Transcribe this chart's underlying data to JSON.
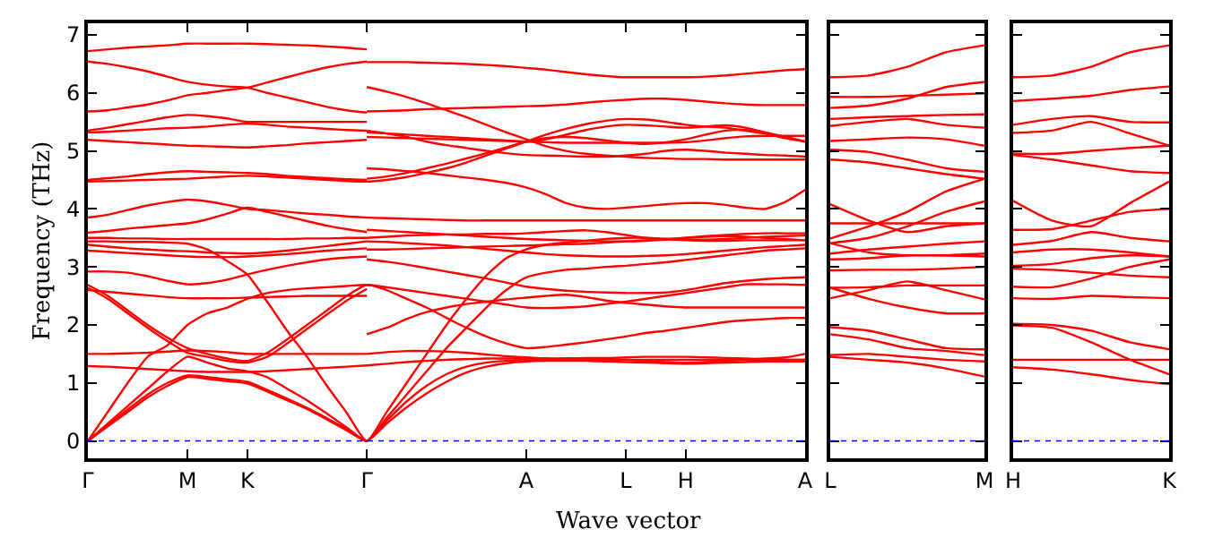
{
  "chart_data": [
    {
      "type": "line",
      "xlabel": "Wave vector",
      "ylabel": "Frequency (THz)",
      "ylim": [
        -0.3,
        7.2
      ],
      "yticks": [
        0,
        1,
        2,
        3,
        4,
        5,
        6,
        7
      ],
      "categories": [
        "Γ",
        null,
        null,
        null,
        null,
        "M",
        null,
        null,
        "K",
        null,
        null,
        null,
        null,
        null,
        "Γ",
        null,
        null,
        null,
        null,
        null,
        null,
        null,
        "A",
        null,
        null,
        null,
        null,
        "L",
        null,
        null,
        "H",
        null,
        null,
        null,
        null,
        null,
        "A"
      ],
      "grid": false,
      "marker": "none",
      "line_style": "solid",
      "ref_lines": [
        {
          "axis": "y",
          "value": 0,
          "color": "#0000ff",
          "line_style": "dotted"
        }
      ],
      "series": [
        {
          "color": "#ff0000",
          "values": [
            6.72,
            6.75,
            6.78,
            6.8,
            6.82,
            6.85,
            6.85,
            6.85,
            6.85,
            6.84,
            6.83,
            6.82,
            6.8,
            6.78,
            6.75,
            null,
            null,
            null,
            null,
            null,
            null,
            null,
            null,
            null,
            null,
            null,
            null,
            null,
            null,
            null,
            null,
            null,
            null,
            null,
            null,
            null,
            null
          ]
        },
        {
          "color": "#ff0000",
          "values": [
            6.54,
            6.5,
            6.44,
            6.37,
            6.28,
            6.19,
            6.14,
            6.11,
            6.09,
            6.0,
            5.92,
            5.84,
            5.76,
            5.7,
            5.66,
            null,
            null,
            null,
            null,
            null,
            null,
            null,
            null,
            null,
            null,
            null,
            null,
            null,
            null,
            null,
            null,
            null,
            null,
            null,
            null,
            null,
            null
          ]
        },
        {
          "color": "#ff0000",
          "values": [
            5.68,
            5.7,
            5.75,
            5.8,
            5.87,
            5.96,
            6.0,
            6.05,
            6.09,
            6.18,
            6.27,
            6.36,
            6.44,
            6.5,
            6.54,
            null,
            null,
            null,
            null,
            null,
            null,
            null,
            null,
            null,
            null,
            null,
            null,
            null,
            null,
            null,
            null,
            null,
            null,
            null,
            null,
            null,
            null
          ]
        },
        {
          "color": "#ff0000",
          "values": [
            5.35,
            5.4,
            5.46,
            5.52,
            5.58,
            5.62,
            5.6,
            5.56,
            5.5,
            5.5,
            5.5,
            5.5,
            5.5,
            5.5,
            5.5,
            null,
            null,
            null,
            null,
            null,
            null,
            null,
            null,
            null,
            null,
            null,
            null,
            null,
            null,
            null,
            null,
            null,
            null,
            null,
            null,
            null,
            null
          ]
        },
        {
          "color": "#ff0000",
          "values": [
            5.32,
            5.33,
            5.35,
            5.37,
            5.39,
            5.4,
            5.42,
            5.45,
            5.47,
            5.45,
            5.42,
            5.4,
            5.38,
            5.36,
            5.35,
            null,
            null,
            null,
            null,
            null,
            null,
            null,
            null,
            null,
            null,
            null,
            null,
            null,
            null,
            null,
            null,
            null,
            null,
            null,
            null,
            null,
            null
          ]
        },
        {
          "color": "#ff0000",
          "values": [
            5.19,
            5.17,
            5.15,
            5.13,
            5.11,
            5.09,
            5.08,
            5.07,
            5.06,
            5.08,
            5.1,
            5.13,
            5.15,
            5.17,
            5.19,
            null,
            null,
            null,
            null,
            null,
            null,
            null,
            null,
            null,
            null,
            null,
            null,
            null,
            null,
            null,
            null,
            null,
            null,
            null,
            null,
            null,
            null
          ]
        },
        {
          "color": "#ff0000",
          "values": [
            4.5,
            4.53,
            4.56,
            4.6,
            4.63,
            4.65,
            4.64,
            4.63,
            4.62,
            4.6,
            4.57,
            4.55,
            4.53,
            4.51,
            4.5,
            null,
            null,
            null,
            null,
            null,
            null,
            null,
            null,
            null,
            null,
            null,
            null,
            null,
            null,
            null,
            null,
            null,
            null,
            null,
            null,
            null,
            null
          ]
        },
        {
          "color": "#ff0000",
          "values": [
            3.85,
            3.9,
            3.98,
            4.06,
            4.12,
            4.16,
            4.13,
            4.07,
            4.0,
            3.98,
            3.95,
            3.92,
            3.9,
            3.87,
            3.85,
            null,
            null,
            null,
            null,
            null,
            null,
            null,
            null,
            null,
            null,
            null,
            null,
            null,
            null,
            null,
            null,
            null,
            null,
            null,
            null,
            null,
            null
          ]
        },
        {
          "color": "#ff0000",
          "values": [
            3.59,
            3.62,
            3.66,
            3.69,
            3.72,
            3.75,
            3.82,
            3.92,
            4.02,
            3.95,
            3.87,
            3.79,
            3.71,
            3.65,
            3.6,
            null,
            null,
            null,
            null,
            null,
            null,
            null,
            null,
            null,
            null,
            null,
            null,
            null,
            null,
            null,
            null,
            null,
            null,
            null,
            null,
            null,
            null
          ]
        },
        {
          "color": "#ff0000",
          "values": [
            3.5,
            3.5,
            3.49,
            3.49,
            3.48,
            3.48,
            3.48,
            3.48,
            3.48,
            3.48,
            3.48,
            3.49,
            3.49,
            3.5,
            3.5,
            null,
            null,
            null,
            null,
            null,
            null,
            null,
            null,
            null,
            null,
            null,
            null,
            null,
            null,
            null,
            null,
            null,
            null,
            null,
            null,
            null,
            null
          ]
        },
        {
          "color": "#ff0000",
          "values": [
            3.38,
            3.35,
            3.32,
            3.3,
            3.28,
            3.27,
            3.25,
            3.24,
            3.23,
            3.25,
            3.28,
            3.32,
            3.36,
            3.4,
            3.44,
            null,
            null,
            null,
            null,
            null,
            null,
            null,
            null,
            null,
            null,
            null,
            null,
            null,
            null,
            null,
            null,
            null,
            null,
            null,
            null,
            null,
            null
          ]
        },
        {
          "color": "#ff0000",
          "values": [
            3.28,
            3.26,
            3.24,
            3.22,
            3.2,
            3.18,
            3.17,
            3.17,
            3.18,
            3.2,
            3.22,
            3.25,
            3.28,
            3.3,
            3.32,
            null,
            null,
            null,
            null,
            null,
            null,
            null,
            null,
            null,
            null,
            null,
            null,
            null,
            null,
            null,
            null,
            null,
            null,
            null,
            null,
            null,
            null
          ]
        },
        {
          "color": "#ff0000",
          "values": [
            2.92,
            2.92,
            2.9,
            2.84,
            2.76,
            2.7,
            2.72,
            2.78,
            2.87,
            2.95,
            3.02,
            3.08,
            3.13,
            3.16,
            3.18,
            null,
            null,
            null,
            null,
            null,
            null,
            null,
            null,
            null,
            null,
            null,
            null,
            null,
            null,
            null,
            null,
            null,
            null,
            null,
            null,
            null,
            null
          ]
        },
        {
          "color": "#ff0000",
          "values": [
            2.6,
            2.57,
            2.54,
            2.51,
            2.48,
            2.46,
            2.46,
            2.46,
            2.47,
            2.48,
            2.49,
            2.5,
            2.5,
            2.5,
            2.5,
            null,
            null,
            null,
            null,
            null,
            null,
            null,
            null,
            null,
            null,
            null,
            null,
            null,
            null,
            null,
            null,
            null,
            null,
            null,
            null,
            null,
            null
          ]
        },
        {
          "color": "#ff0000",
          "values": [
            2.64,
            2.45,
            2.2,
            1.95,
            1.72,
            1.52,
            1.45,
            1.38,
            1.35,
            1.45,
            1.68,
            1.93,
            2.18,
            2.42,
            2.62,
            null,
            null,
            null,
            null,
            null,
            null,
            null,
            null,
            null,
            null,
            null,
            null,
            null,
            null,
            null,
            null,
            null,
            null,
            null,
            null,
            null,
            null
          ]
        },
        {
          "color": "#ff0000",
          "values": [
            1.5,
            1.5,
            1.51,
            1.52,
            1.54,
            1.56,
            1.55,
            1.53,
            1.5,
            1.5,
            1.5,
            1.5,
            1.5,
            1.5,
            1.5,
            null,
            null,
            null,
            null,
            null,
            null,
            null,
            null,
            null,
            null,
            null,
            null,
            null,
            null,
            null,
            null,
            null,
            null,
            null,
            null,
            null,
            null
          ]
        },
        {
          "color": "#ff0000",
          "values": [
            1.29,
            1.28,
            1.26,
            1.24,
            1.22,
            1.2,
            1.19,
            1.19,
            1.19,
            1.2,
            1.22,
            1.24,
            1.26,
            1.28,
            1.3,
            null,
            null,
            null,
            null,
            null,
            null,
            null,
            null,
            null,
            null,
            null,
            null,
            null,
            null,
            null,
            null,
            null,
            null,
            null,
            null,
            null,
            null
          ]
        },
        {
          "color": "#ff0000",
          "values": [
            0,
            0.25,
            0.5,
            0.75,
            0.95,
            1.1,
            1.07,
            1.03,
            0.99,
            0.85,
            0.7,
            0.55,
            0.37,
            0.18,
            0,
            0.3,
            0.58,
            0.82,
            1.02,
            1.18,
            1.28,
            1.34,
            1.37,
            1.38,
            1.38,
            1.38,
            1.37,
            1.36,
            1.35,
            1.34,
            1.33,
            1.34,
            1.35,
            1.36,
            1.37,
            1.37,
            1.37
          ]
        },
        {
          "color": "#ff0000",
          "values": [
            0,
            0.27,
            0.54,
            0.8,
            1.0,
            1.13,
            1.1,
            1.06,
            1.02,
            0.88,
            0.73,
            0.57,
            0.39,
            0.2,
            0,
            0.35,
            0.68,
            0.95,
            1.15,
            1.28,
            1.35,
            1.38,
            1.4,
            1.41,
            1.42,
            1.43,
            1.43,
            1.44,
            1.45,
            1.45,
            1.45,
            1.44,
            1.43,
            1.42,
            1.41,
            1.4,
            1.4
          ]
        },
        {
          "color": "#ff0000",
          "values": [
            3.44,
            3.44,
            3.43,
            3.43,
            3.42,
            3.4,
            3.3,
            3.1,
            2.87,
            2.4,
            1.9,
            1.45,
            0.95,
            0.48,
            0,
            0.5,
            1.0,
            1.5,
            2.0,
            2.45,
            2.85,
            3.15,
            3.3,
            3.38,
            3.42,
            3.45,
            3.48,
            3.5,
            3.5,
            3.48,
            3.46,
            3.45,
            3.45,
            3.46,
            3.46,
            3.46,
            3.46
          ]
        },
        {
          "color": "#ff0000",
          "values": [
            0,
            0.3,
            0.6,
            0.9,
            1.2,
            1.45,
            1.35,
            1.25,
            1.2,
            1.1,
            0.9,
            0.7,
            0.47,
            0.23,
            0,
            0.4,
            0.8,
            1.2,
            1.6,
            1.95,
            2.3,
            2.6,
            2.82,
            2.9,
            2.95,
            2.97,
            3.0,
            3.02,
            3.05,
            3.08,
            3.12,
            3.16,
            3.2,
            3.24,
            3.28,
            3.3,
            3.32
          ]
        },
        {
          "color": "#ff0000",
          "values": [
            4.47,
            4.48,
            4.49,
            4.5,
            4.51,
            4.52,
            4.54,
            4.56,
            4.57,
            4.56,
            4.54,
            4.52,
            4.5,
            4.48,
            4.47,
            4.5,
            4.55,
            4.62,
            4.7,
            4.8,
            4.92,
            5.04,
            5.16,
            5.28,
            5.38,
            5.46,
            5.52,
            5.55,
            5.54,
            5.5,
            5.45,
            5.42,
            5.4,
            5.35,
            5.3,
            5.24,
            5.16
          ]
        },
        {
          "color": "#ff0000",
          "values": [
            2.69,
            2.5,
            2.25,
            2.0,
            1.78,
            1.6,
            1.5,
            1.42,
            1.38,
            1.52,
            1.75,
            2.0,
            2.25,
            2.5,
            2.69,
            2.6,
            2.45,
            2.3,
            2.12,
            1.95,
            1.8,
            1.68,
            1.6,
            1.62,
            1.66,
            1.7,
            1.75,
            1.8,
            1.86,
            1.9,
            1.95,
            2.0,
            2.05,
            2.08,
            2.1,
            2.12,
            2.12
          ]
        },
        {
          "color": "#ff0000",
          "values": [
            0,
            0.5,
            1.0,
            1.45,
            1.65,
            2.0,
            2.2,
            2.3,
            2.45,
            2.55,
            2.6,
            2.63,
            2.65,
            2.67,
            2.69,
            2.65,
            2.6,
            2.55,
            2.5,
            2.45,
            2.4,
            2.35,
            2.3,
            2.29,
            2.3,
            2.32,
            2.36,
            2.4,
            2.45,
            2.5,
            2.55,
            2.6,
            2.65,
            2.7,
            2.7,
            2.7,
            2.69
          ]
        },
        {
          "color": "#ff0000",
          "values": [
            null,
            null,
            null,
            null,
            null,
            null,
            null,
            null,
            null,
            null,
            null,
            null,
            null,
            null,
            6.53,
            6.53,
            6.53,
            6.52,
            6.51,
            6.5,
            6.48,
            6.46,
            6.43,
            6.4,
            6.36,
            6.32,
            6.29,
            6.27,
            6.27,
            6.27,
            6.27,
            6.28,
            6.3,
            6.33,
            6.36,
            6.39,
            6.41
          ]
        },
        {
          "color": "#ff0000",
          "values": [
            null,
            null,
            null,
            null,
            null,
            null,
            null,
            null,
            null,
            null,
            null,
            null,
            null,
            null,
            6.1,
            6.02,
            5.93,
            5.82,
            5.7,
            5.58,
            5.45,
            5.32,
            5.2,
            5.08,
            5.0,
            4.95,
            4.92,
            4.9,
            4.88,
            4.87,
            4.86,
            4.86,
            4.85,
            4.85,
            4.85,
            4.85,
            4.85
          ]
        },
        {
          "color": "#ff0000",
          "values": [
            null,
            null,
            null,
            null,
            null,
            null,
            null,
            null,
            null,
            null,
            null,
            null,
            null,
            null,
            5.68,
            5.69,
            5.7,
            5.72,
            5.73,
            5.74,
            5.75,
            5.76,
            5.77,
            5.78,
            5.8,
            5.83,
            5.86,
            5.88,
            5.9,
            5.9,
            5.88,
            5.85,
            5.82,
            5.8,
            5.79,
            5.79,
            5.79
          ]
        },
        {
          "color": "#ff0000",
          "values": [
            null,
            null,
            null,
            null,
            null,
            null,
            null,
            null,
            null,
            null,
            null,
            null,
            null,
            null,
            5.32,
            5.3,
            5.28,
            5.26,
            5.24,
            5.22,
            5.2,
            5.18,
            5.16,
            5.2,
            5.28,
            5.36,
            5.42,
            5.45,
            5.44,
            5.42,
            5.4,
            5.42,
            5.44,
            5.4,
            5.32,
            5.24,
            5.16
          ]
        },
        {
          "color": "#ff0000",
          "values": [
            null,
            null,
            null,
            null,
            null,
            null,
            null,
            null,
            null,
            null,
            null,
            null,
            null,
            null,
            5.24,
            5.23,
            5.22,
            5.21,
            5.2,
            5.19,
            5.18,
            5.17,
            5.16,
            5.15,
            5.14,
            5.14,
            5.14,
            5.14,
            5.14,
            5.14,
            5.15,
            5.18,
            5.22,
            5.25,
            5.26,
            5.26,
            5.26
          ]
        },
        {
          "color": "#ff0000",
          "values": [
            null,
            null,
            null,
            null,
            null,
            null,
            null,
            null,
            null,
            null,
            null,
            null,
            null,
            null,
            4.52,
            4.56,
            4.62,
            4.7,
            4.78,
            4.87,
            4.96,
            5.06,
            5.16,
            5.22,
            5.24,
            5.22,
            5.18,
            5.14,
            5.12,
            5.15,
            5.2,
            5.28,
            5.35,
            5.36,
            5.3,
            5.22,
            5.16
          ]
        },
        {
          "color": "#ff0000",
          "values": [
            null,
            null,
            null,
            null,
            null,
            null,
            null,
            null,
            null,
            null,
            null,
            null,
            null,
            null,
            5.35,
            5.3,
            5.24,
            5.16,
            5.1,
            5.05,
            5.0,
            4.96,
            4.93,
            4.92,
            4.91,
            4.9,
            4.9,
            4.92,
            4.95,
            5.0,
            5.02,
            5.0,
            4.97,
            4.95,
            4.93,
            4.92,
            4.9
          ]
        },
        {
          "color": "#ff0000",
          "values": [
            null,
            null,
            null,
            null,
            null,
            null,
            null,
            null,
            null,
            null,
            null,
            null,
            null,
            null,
            4.7,
            4.68,
            4.65,
            4.62,
            4.58,
            4.54,
            4.5,
            4.45,
            4.37,
            4.25,
            4.1,
            4.02,
            4.0,
            4.02,
            4.05,
            4.08,
            4.1,
            4.1,
            4.07,
            4.02,
            4.0,
            4.12,
            4.33
          ]
        },
        {
          "color": "#ff0000",
          "values": [
            null,
            null,
            null,
            null,
            null,
            null,
            null,
            null,
            null,
            null,
            null,
            null,
            null,
            null,
            3.85,
            3.84,
            3.83,
            3.82,
            3.81,
            3.8,
            3.8,
            3.8,
            3.8,
            3.8,
            3.8,
            3.8,
            3.8,
            3.8,
            3.8,
            3.8,
            3.8,
            3.8,
            3.8,
            3.8,
            3.8,
            3.8,
            3.8
          ]
        },
        {
          "color": "#ff0000",
          "values": [
            null,
            null,
            null,
            null,
            null,
            null,
            null,
            null,
            null,
            null,
            null,
            null,
            null,
            null,
            3.64,
            3.62,
            3.6,
            3.58,
            3.56,
            3.54,
            3.52,
            3.5,
            3.48,
            3.47,
            3.46,
            3.45,
            3.44,
            3.44,
            3.45,
            3.47,
            3.5,
            3.53,
            3.55,
            3.57,
            3.58,
            3.58,
            3.58
          ]
        },
        {
          "color": "#ff0000",
          "values": [
            null,
            null,
            null,
            null,
            null,
            null,
            null,
            null,
            null,
            null,
            null,
            null,
            null,
            null,
            3.44,
            3.43,
            3.41,
            3.39,
            3.37,
            3.34,
            3.31,
            3.28,
            3.25,
            3.22,
            3.2,
            3.19,
            3.18,
            3.18,
            3.19,
            3.2,
            3.22,
            3.25,
            3.28,
            3.31,
            3.34,
            3.36,
            3.38
          ]
        },
        {
          "color": "#ff0000",
          "values": [
            null,
            null,
            null,
            null,
            null,
            null,
            null,
            null,
            null,
            null,
            null,
            null,
            null,
            null,
            3.3,
            3.3,
            3.31,
            3.32,
            3.33,
            3.34,
            3.35,
            3.36,
            3.37,
            3.38,
            3.39,
            3.4,
            3.42,
            3.44,
            3.46,
            3.48,
            3.5,
            3.52,
            3.53,
            3.52,
            3.5,
            3.48,
            3.46
          ]
        },
        {
          "color": "#ff0000",
          "values": [
            null,
            null,
            null,
            null,
            null,
            null,
            null,
            null,
            null,
            null,
            null,
            null,
            null,
            null,
            3.13,
            3.09,
            3.04,
            2.98,
            2.92,
            2.86,
            2.8,
            2.73,
            2.66,
            2.62,
            2.59,
            2.57,
            2.56,
            2.55,
            2.55,
            2.56,
            2.6,
            2.66,
            2.72,
            2.76,
            2.79,
            2.81,
            2.82
          ]
        },
        {
          "color": "#ff0000",
          "values": [
            null,
            null,
            null,
            null,
            null,
            null,
            null,
            null,
            null,
            null,
            null,
            null,
            null,
            null,
            1.84,
            1.95,
            2.1,
            2.22,
            2.3,
            2.36,
            2.4,
            2.44,
            2.47,
            2.5,
            2.52,
            2.48,
            2.42,
            2.38,
            2.35,
            2.32,
            2.3,
            2.3,
            2.3,
            2.3,
            2.3,
            2.3,
            2.3
          ]
        },
        {
          "color": "#ff0000",
          "values": [
            null,
            null,
            null,
            null,
            null,
            null,
            null,
            null,
            null,
            null,
            null,
            null,
            null,
            null,
            1.3,
            1.33,
            1.36,
            1.38,
            1.4,
            1.41,
            1.42,
            1.42,
            1.42,
            1.42,
            1.42,
            1.42,
            1.41,
            1.4,
            1.38,
            1.36,
            1.35,
            1.36,
            1.38,
            1.4,
            1.42,
            1.44,
            1.5
          ]
        },
        {
          "color": "#ff0000",
          "values": [
            null,
            null,
            null,
            null,
            null,
            null,
            null,
            null,
            null,
            null,
            null,
            null,
            null,
            null,
            1.5,
            1.53,
            1.55,
            1.55,
            1.54,
            1.52,
            1.49,
            1.46,
            1.44,
            1.42,
            1.4,
            1.4,
            1.4,
            1.4,
            1.4,
            1.4,
            1.4,
            1.4,
            1.4,
            1.4,
            1.4,
            1.4,
            1.4
          ]
        },
        {
          "color": "#ff0000",
          "values": [
            null,
            null,
            null,
            null,
            null,
            null,
            null,
            null,
            null,
            null,
            null,
            null,
            null,
            null,
            3.5,
            3.52,
            3.54,
            3.55,
            3.56,
            3.56,
            3.57,
            3.57,
            3.58,
            3.6,
            3.62,
            3.63,
            3.6,
            3.55,
            3.5,
            3.48,
            3.47,
            3.47,
            3.48,
            3.5,
            3.52,
            3.53,
            3.54
          ]
        }
      ]
    },
    {
      "type": "line",
      "ylim": [
        -0.3,
        7.2
      ],
      "yticks": [
        0,
        1,
        2,
        3,
        4,
        5,
        6,
        7
      ],
      "tick_labels": "x",
      "categories": [
        "L",
        null,
        null,
        null,
        "M"
      ],
      "grid": false,
      "marker": "none",
      "line_style": "solid",
      "ref_lines": [
        {
          "axis": "y",
          "value": 0,
          "color": "#0000ff",
          "line_style": "dotted"
        }
      ],
      "series": [
        {
          "color": "#ff0000",
          "values": [
            6.27,
            6.3,
            6.45,
            6.7,
            6.82
          ]
        },
        {
          "color": "#ff0000",
          "values": [
            5.93,
            5.93,
            5.95,
            5.97,
            5.99
          ]
        },
        {
          "color": "#ff0000",
          "values": [
            5.74,
            5.78,
            5.9,
            6.1,
            6.19
          ]
        },
        {
          "color": "#ff0000",
          "values": [
            5.55,
            5.58,
            5.6,
            5.62,
            5.63
          ]
        },
        {
          "color": "#ff0000",
          "values": [
            5.43,
            5.5,
            5.55,
            5.45,
            5.4
          ]
        },
        {
          "color": "#ff0000",
          "values": [
            5.17,
            5.2,
            5.23,
            5.2,
            5.09
          ]
        },
        {
          "color": "#ff0000",
          "values": [
            5.02,
            4.98,
            4.85,
            4.7,
            4.64
          ]
        },
        {
          "color": "#ff0000",
          "values": [
            4.85,
            4.8,
            4.7,
            4.6,
            4.52
          ]
        },
        {
          "color": "#ff0000",
          "values": [
            4.08,
            3.8,
            3.6,
            3.7,
            3.75
          ]
        },
        {
          "color": "#ff0000",
          "values": [
            3.49,
            3.7,
            3.95,
            4.3,
            4.52
          ]
        },
        {
          "color": "#ff0000",
          "values": [
            3.41,
            3.5,
            3.7,
            3.95,
            4.13
          ]
        },
        {
          "color": "#ff0000",
          "values": [
            3.75,
            3.75,
            3.75,
            3.75,
            3.75
          ]
        },
        {
          "color": "#ff0000",
          "values": [
            3.23,
            3.3,
            3.35,
            3.4,
            3.44
          ]
        },
        {
          "color": "#ff0000",
          "values": [
            3.13,
            3.15,
            3.2,
            3.2,
            3.23
          ]
        },
        {
          "color": "#ff0000",
          "values": [
            3.41,
            3.25,
            3.2,
            3.2,
            3.18
          ]
        },
        {
          "color": "#ff0000",
          "values": [
            2.94,
            2.95,
            2.95,
            2.97,
            3.0
          ]
        },
        {
          "color": "#ff0000",
          "values": [
            2.64,
            2.65,
            2.68,
            2.68,
            2.68
          ]
        },
        {
          "color": "#ff0000",
          "values": [
            2.46,
            2.6,
            2.75,
            2.6,
            2.44
          ]
        },
        {
          "color": "#ff0000",
          "values": [
            2.64,
            2.45,
            2.3,
            2.2,
            2.2
          ]
        },
        {
          "color": "#ff0000",
          "values": [
            1.96,
            1.9,
            1.75,
            1.6,
            1.58
          ]
        },
        {
          "color": "#ff0000",
          "values": [
            1.84,
            1.75,
            1.6,
            1.55,
            1.48
          ]
        },
        {
          "color": "#ff0000",
          "values": [
            1.48,
            1.5,
            1.45,
            1.4,
            1.37
          ]
        },
        {
          "color": "#ff0000",
          "values": [
            1.45,
            1.4,
            1.35,
            1.25,
            1.11
          ]
        }
      ]
    },
    {
      "type": "line",
      "ylim": [
        -0.3,
        7.2
      ],
      "yticks": [
        0,
        1,
        2,
        3,
        4,
        5,
        6,
        7
      ],
      "tick_labels": "x",
      "categories": [
        "H",
        null,
        null,
        null,
        "K"
      ],
      "grid": false,
      "marker": "none",
      "line_style": "solid",
      "ref_lines": [
        {
          "axis": "y",
          "value": 0,
          "color": "#0000ff",
          "line_style": "dotted"
        }
      ],
      "series": [
        {
          "color": "#ff0000",
          "values": [
            6.27,
            6.3,
            6.45,
            6.7,
            6.82
          ]
        },
        {
          "color": "#ff0000",
          "values": [
            5.86,
            5.9,
            5.95,
            6.05,
            6.11
          ]
        },
        {
          "color": "#ff0000",
          "values": [
            5.45,
            5.55,
            5.6,
            5.5,
            5.49
          ]
        },
        {
          "color": "#ff0000",
          "values": [
            5.31,
            5.35,
            5.5,
            5.3,
            5.09
          ]
        },
        {
          "color": "#ff0000",
          "values": [
            4.95,
            4.95,
            5.0,
            5.05,
            5.09
          ]
        },
        {
          "color": "#ff0000",
          "values": [
            4.93,
            4.85,
            4.75,
            4.65,
            4.62
          ]
        },
        {
          "color": "#ff0000",
          "values": [
            4.14,
            3.8,
            3.7,
            4.1,
            4.47
          ]
        },
        {
          "color": "#ff0000",
          "values": [
            3.64,
            3.65,
            3.8,
            3.95,
            4.0
          ]
        },
        {
          "color": "#ff0000",
          "values": [
            3.38,
            3.45,
            3.6,
            3.5,
            3.44
          ]
        },
        {
          "color": "#ff0000",
          "values": [
            3.25,
            3.3,
            3.3,
            3.25,
            3.18
          ]
        },
        {
          "color": "#ff0000",
          "values": [
            3.02,
            3.05,
            3.15,
            3.2,
            3.18
          ]
        },
        {
          "color": "#ff0000",
          "values": [
            2.97,
            2.95,
            2.9,
            2.85,
            2.82
          ]
        },
        {
          "color": "#ff0000",
          "values": [
            2.66,
            2.65,
            2.8,
            3.0,
            3.13
          ]
        },
        {
          "color": "#ff0000",
          "values": [
            2.46,
            2.45,
            2.5,
            2.48,
            2.46
          ]
        },
        {
          "color": "#ff0000",
          "values": [
            2.02,
            2.0,
            1.9,
            1.7,
            1.58
          ]
        },
        {
          "color": "#ff0000",
          "values": [
            1.99,
            1.95,
            1.7,
            1.4,
            1.15
          ]
        },
        {
          "color": "#ff0000",
          "values": [
            1.4,
            1.4,
            1.4,
            1.4,
            1.4
          ]
        },
        {
          "color": "#ff0000",
          "values": [
            1.27,
            1.23,
            1.15,
            1.05,
            0.98
          ]
        }
      ]
    }
  ]
}
